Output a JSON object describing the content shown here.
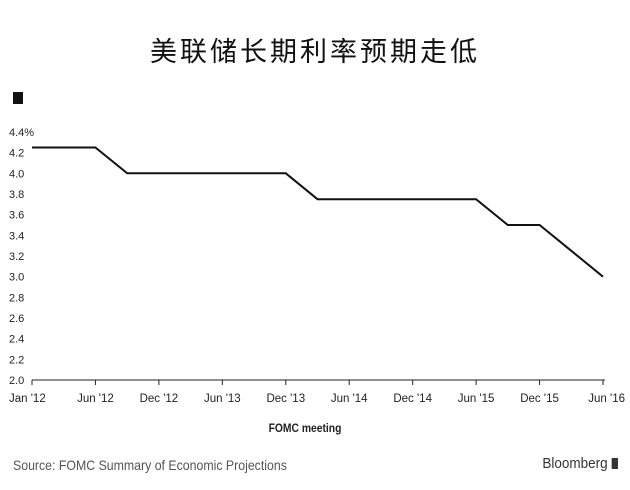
{
  "chart_data": {
    "type": "line",
    "title": "美联储长期利率预期走低",
    "xlabel": "FOMC meeting",
    "ylabel": "",
    "y_unit_label": "4.4%",
    "ylim": [
      2.0,
      4.4
    ],
    "yticks": [
      "2.0",
      "2.2",
      "2.4",
      "2.6",
      "2.8",
      "3.0",
      "3.2",
      "3.4",
      "3.6",
      "3.8",
      "4.0",
      "4.2"
    ],
    "categories": [
      "Jan '12",
      "Jun '12",
      "Dec '12",
      "Jun '13",
      "Dec '13",
      "Jun '14",
      "Dec '14",
      "Jun '15",
      "Dec '15",
      "Jun '16"
    ],
    "grid": false,
    "series": [
      {
        "color": "#111111",
        "x": [
          "Jan '12",
          "Jun '12",
          "Sep '12",
          "Dec '12",
          "Mar '13",
          "Jun '13",
          "Sep '13",
          "Dec '13",
          "Mar '14",
          "Jun '14",
          "Sep '14",
          "Dec '14",
          "Mar '15",
          "Jun '15",
          "Sep '15",
          "Dec '15",
          "Mar '16",
          "Jun '16"
        ],
        "x_index": [
          0,
          1,
          1.5,
          2,
          2.5,
          3,
          3.5,
          4,
          4.5,
          5,
          5.5,
          6,
          6.5,
          7,
          7.5,
          8,
          8.5,
          9
        ],
        "values": [
          4.25,
          4.25,
          4.0,
          4.0,
          4.0,
          4.0,
          4.0,
          4.0,
          3.75,
          3.75,
          3.75,
          3.75,
          3.75,
          3.75,
          3.5,
          3.5,
          3.25,
          3.0
        ]
      }
    ]
  },
  "footer": {
    "source": "Source: FOMC Summary of Economic Projections",
    "brand": "Bloomberg"
  },
  "colors": {
    "line": "#111111",
    "axis": "#222222",
    "text": "#111111",
    "footer": "#555555"
  }
}
